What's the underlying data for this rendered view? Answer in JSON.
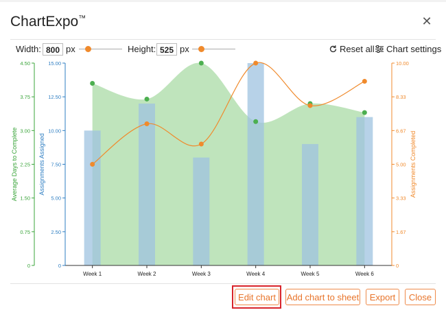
{
  "app": {
    "title": "ChartExpo",
    "trademark": "™",
    "close_icon": "close-icon"
  },
  "controls": {
    "width_label": "Width:",
    "width_value": "800",
    "width_unit": "px",
    "width_slider": 0.2,
    "height_label": "Height:",
    "height_value": "525",
    "height_unit": "px",
    "height_slider": 0.2,
    "reset_label": "Reset all",
    "settings_label": "Chart settings"
  },
  "buttons": {
    "edit": "Edit chart",
    "add": "Add chart to sheet",
    "export": "Export",
    "close": "Close"
  },
  "colors": {
    "green": "#7ec87e",
    "blue": "#2e7ec2",
    "orange": "#f08a2c",
    "bar": "#9fc3e0",
    "area": "#a9dba5"
  },
  "chart_data": {
    "type": "bar",
    "categories": [
      "Week 1",
      "Week 2",
      "Week 3",
      "Week 4",
      "Week 5",
      "Week 6"
    ],
    "series": [
      {
        "values": [
          10,
          12,
          8,
          15,
          9,
          11
        ],
        "type": "bar",
        "axis": "middle"
      },
      {
        "values": [
          4.05,
          3.7,
          4.5,
          3.2,
          3.6,
          3.4
        ],
        "type": "area",
        "axis": "left"
      },
      {
        "values": [
          5.0,
          7.0,
          6.0,
          10.0,
          7.9,
          9.1
        ],
        "type": "line",
        "axis": "right"
      }
    ],
    "left_axis": {
      "label": "Average Days to Complete",
      "ticks": [
        "0",
        "0.75",
        "1.50",
        "2.25",
        "3.00",
        "3.75",
        "4.50"
      ],
      "range": [
        0,
        4.5
      ]
    },
    "middle_axis": {
      "label": "Assignments Assigned",
      "ticks": [
        "0",
        "2.50",
        "5.00",
        "7.50",
        "10.00",
        "12.50",
        "15.00"
      ],
      "range": [
        0,
        15
      ]
    },
    "right_axis": {
      "label": "Assignments Completed",
      "ticks": [
        "0",
        "1.67",
        "3.33",
        "5.00",
        "6.67",
        "8.33",
        "10.00"
      ],
      "range": [
        0,
        10
      ]
    },
    "grid": false
  }
}
